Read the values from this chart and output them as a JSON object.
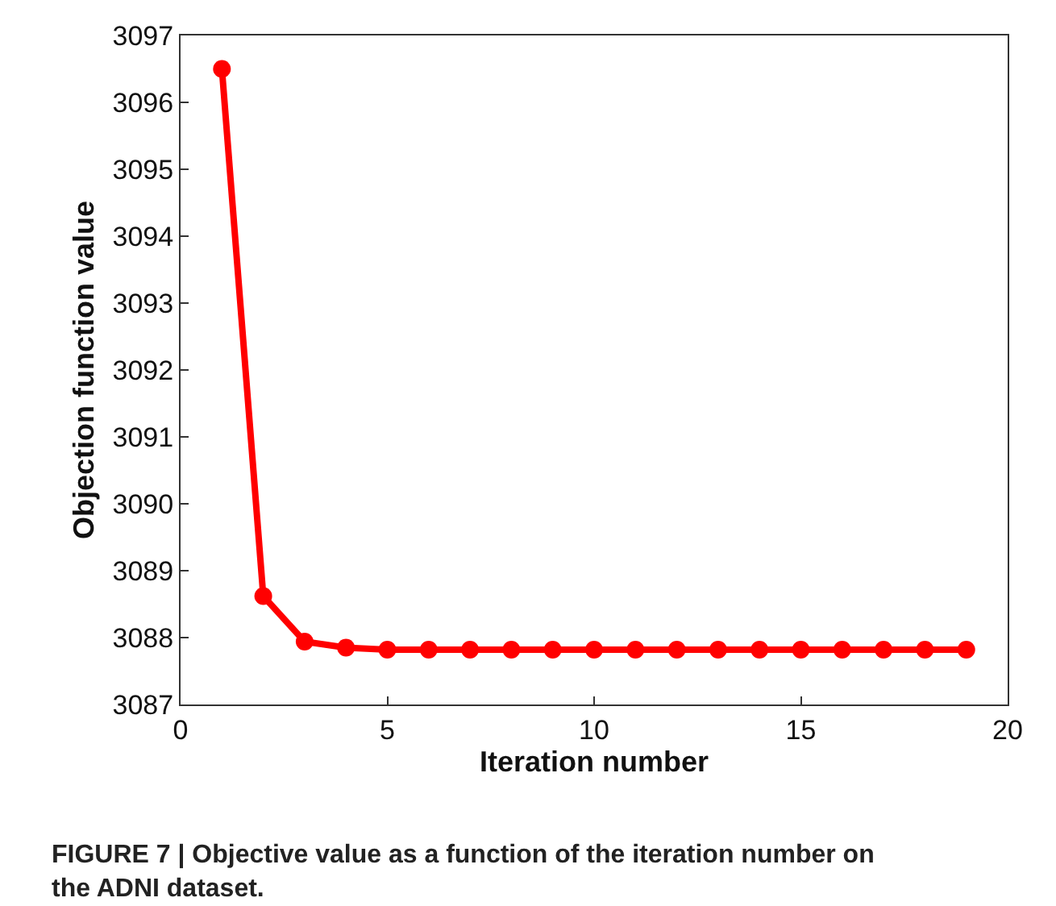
{
  "chart_data": {
    "type": "line",
    "x": [
      1,
      2,
      3,
      4,
      5,
      6,
      7,
      8,
      9,
      10,
      11,
      12,
      13,
      14,
      15,
      16,
      17,
      18,
      19
    ],
    "series": [
      {
        "color": "#ff0000",
        "values": [
          3096.5,
          3088.62,
          3087.94,
          3087.85,
          3087.82,
          3087.82,
          3087.82,
          3087.82,
          3087.82,
          3087.82,
          3087.82,
          3087.82,
          3087.82,
          3087.82,
          3087.82,
          3087.82,
          3087.82,
          3087.82,
          3087.82
        ]
      }
    ],
    "xlabel": "Iteration number",
    "ylabel": "Objection function value",
    "xlim": [
      0,
      20
    ],
    "xticks": [
      0,
      5,
      10,
      15,
      20
    ],
    "ylim": [
      3087,
      3097
    ],
    "yticks": [
      3087,
      3088,
      3089,
      3090,
      3091,
      3092,
      3093,
      3094,
      3095,
      3096,
      3097
    ],
    "marker": "circle",
    "line_style": "solid",
    "annotations": [
      "FIGURE 7 | Objective value as a function of the iteration number on the ADNI dataset."
    ]
  }
}
